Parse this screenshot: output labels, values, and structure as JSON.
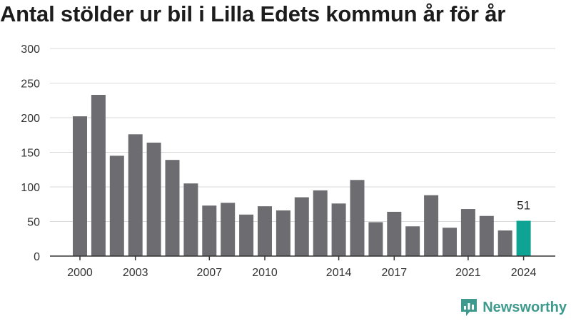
{
  "title": "Antal stölder ur bil i Lilla Edets kommun år för år",
  "brand": {
    "name": "Newsworthy",
    "logo_icon": "newsworthy-logo-icon",
    "color": "#3d9a8c"
  },
  "colors": {
    "bar": "#6d6c71",
    "highlight": "#0fa394",
    "grid": "#d9d9d9",
    "axis": "#333333"
  },
  "chart_data": {
    "type": "bar",
    "title": "Antal stölder ur bil i Lilla Edets kommun år för år",
    "xlabel": "",
    "ylabel": "",
    "categories": [
      2000,
      2001,
      2002,
      2003,
      2004,
      2005,
      2006,
      2007,
      2008,
      2009,
      2010,
      2011,
      2012,
      2013,
      2014,
      2015,
      2016,
      2017,
      2018,
      2019,
      2020,
      2021,
      2022,
      2023,
      2024
    ],
    "values": [
      202,
      233,
      145,
      176,
      164,
      139,
      105,
      73,
      77,
      60,
      72,
      66,
      85,
      95,
      76,
      110,
      49,
      64,
      43,
      88,
      41,
      68,
      58,
      37,
      51
    ],
    "x_tick_labels": [
      "2000",
      "2003",
      "2007",
      "2010",
      "2014",
      "2017",
      "2021",
      "2024"
    ],
    "ylim": [
      0,
      300
    ],
    "y_ticks": [
      0,
      50,
      100,
      150,
      200,
      250,
      300
    ],
    "grid": true,
    "highlight": {
      "category": 2024,
      "label": "51"
    }
  }
}
